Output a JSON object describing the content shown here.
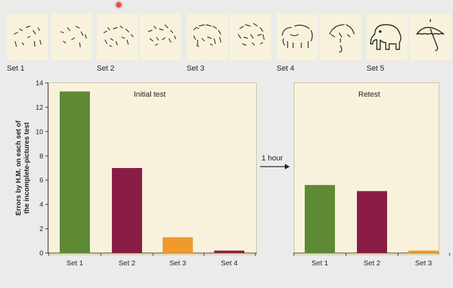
{
  "thumbnail_labels": [
    "Set 1",
    "Set 2",
    "Set 3",
    "Set 4",
    "Set 5"
  ],
  "thumbnail_icons": [
    "fragment-sketch-icon",
    "fragment-sketch-icon",
    "fragment-sketch-icon",
    "fragment-sketch-icon",
    "elephant-fragment-icon",
    "umbrella-fragment-icon",
    "elephant-fragment-icon",
    "umbrella-fragment-icon",
    "elephant-sketch-icon",
    "umbrella-sketch-icon"
  ],
  "arrow": {
    "label": "1 hour"
  },
  "colors": {
    "green": "#5e8a36",
    "crimson": "#8a1d45",
    "orange": "#ef9a2b",
    "panel": "#f8f2dc"
  },
  "chart_data": [
    {
      "type": "bar",
      "title": "Initial test",
      "ylabel": "Errors by H.M. on each set of the incomplete-pictures test",
      "ylim": [
        0,
        14
      ],
      "yticks": [
        0,
        2,
        4,
        6,
        8,
        10,
        12,
        14
      ],
      "categories": [
        "Set 1",
        "Set 2",
        "Set 3",
        "Set 4"
      ],
      "values": [
        13.3,
        7.0,
        1.3,
        0.2
      ],
      "colors": [
        "#5e8a36",
        "#8a1d45",
        "#ef9a2b",
        "#8a1d45"
      ]
    },
    {
      "type": "bar",
      "title": "Retest",
      "ylim": [
        0,
        14
      ],
      "categories": [
        "Set 1",
        "Set 2",
        "Set 3"
      ],
      "values": [
        5.6,
        5.1,
        0.2
      ],
      "colors": [
        "#5e8a36",
        "#8a1d45",
        "#ef9a2b"
      ]
    }
  ]
}
